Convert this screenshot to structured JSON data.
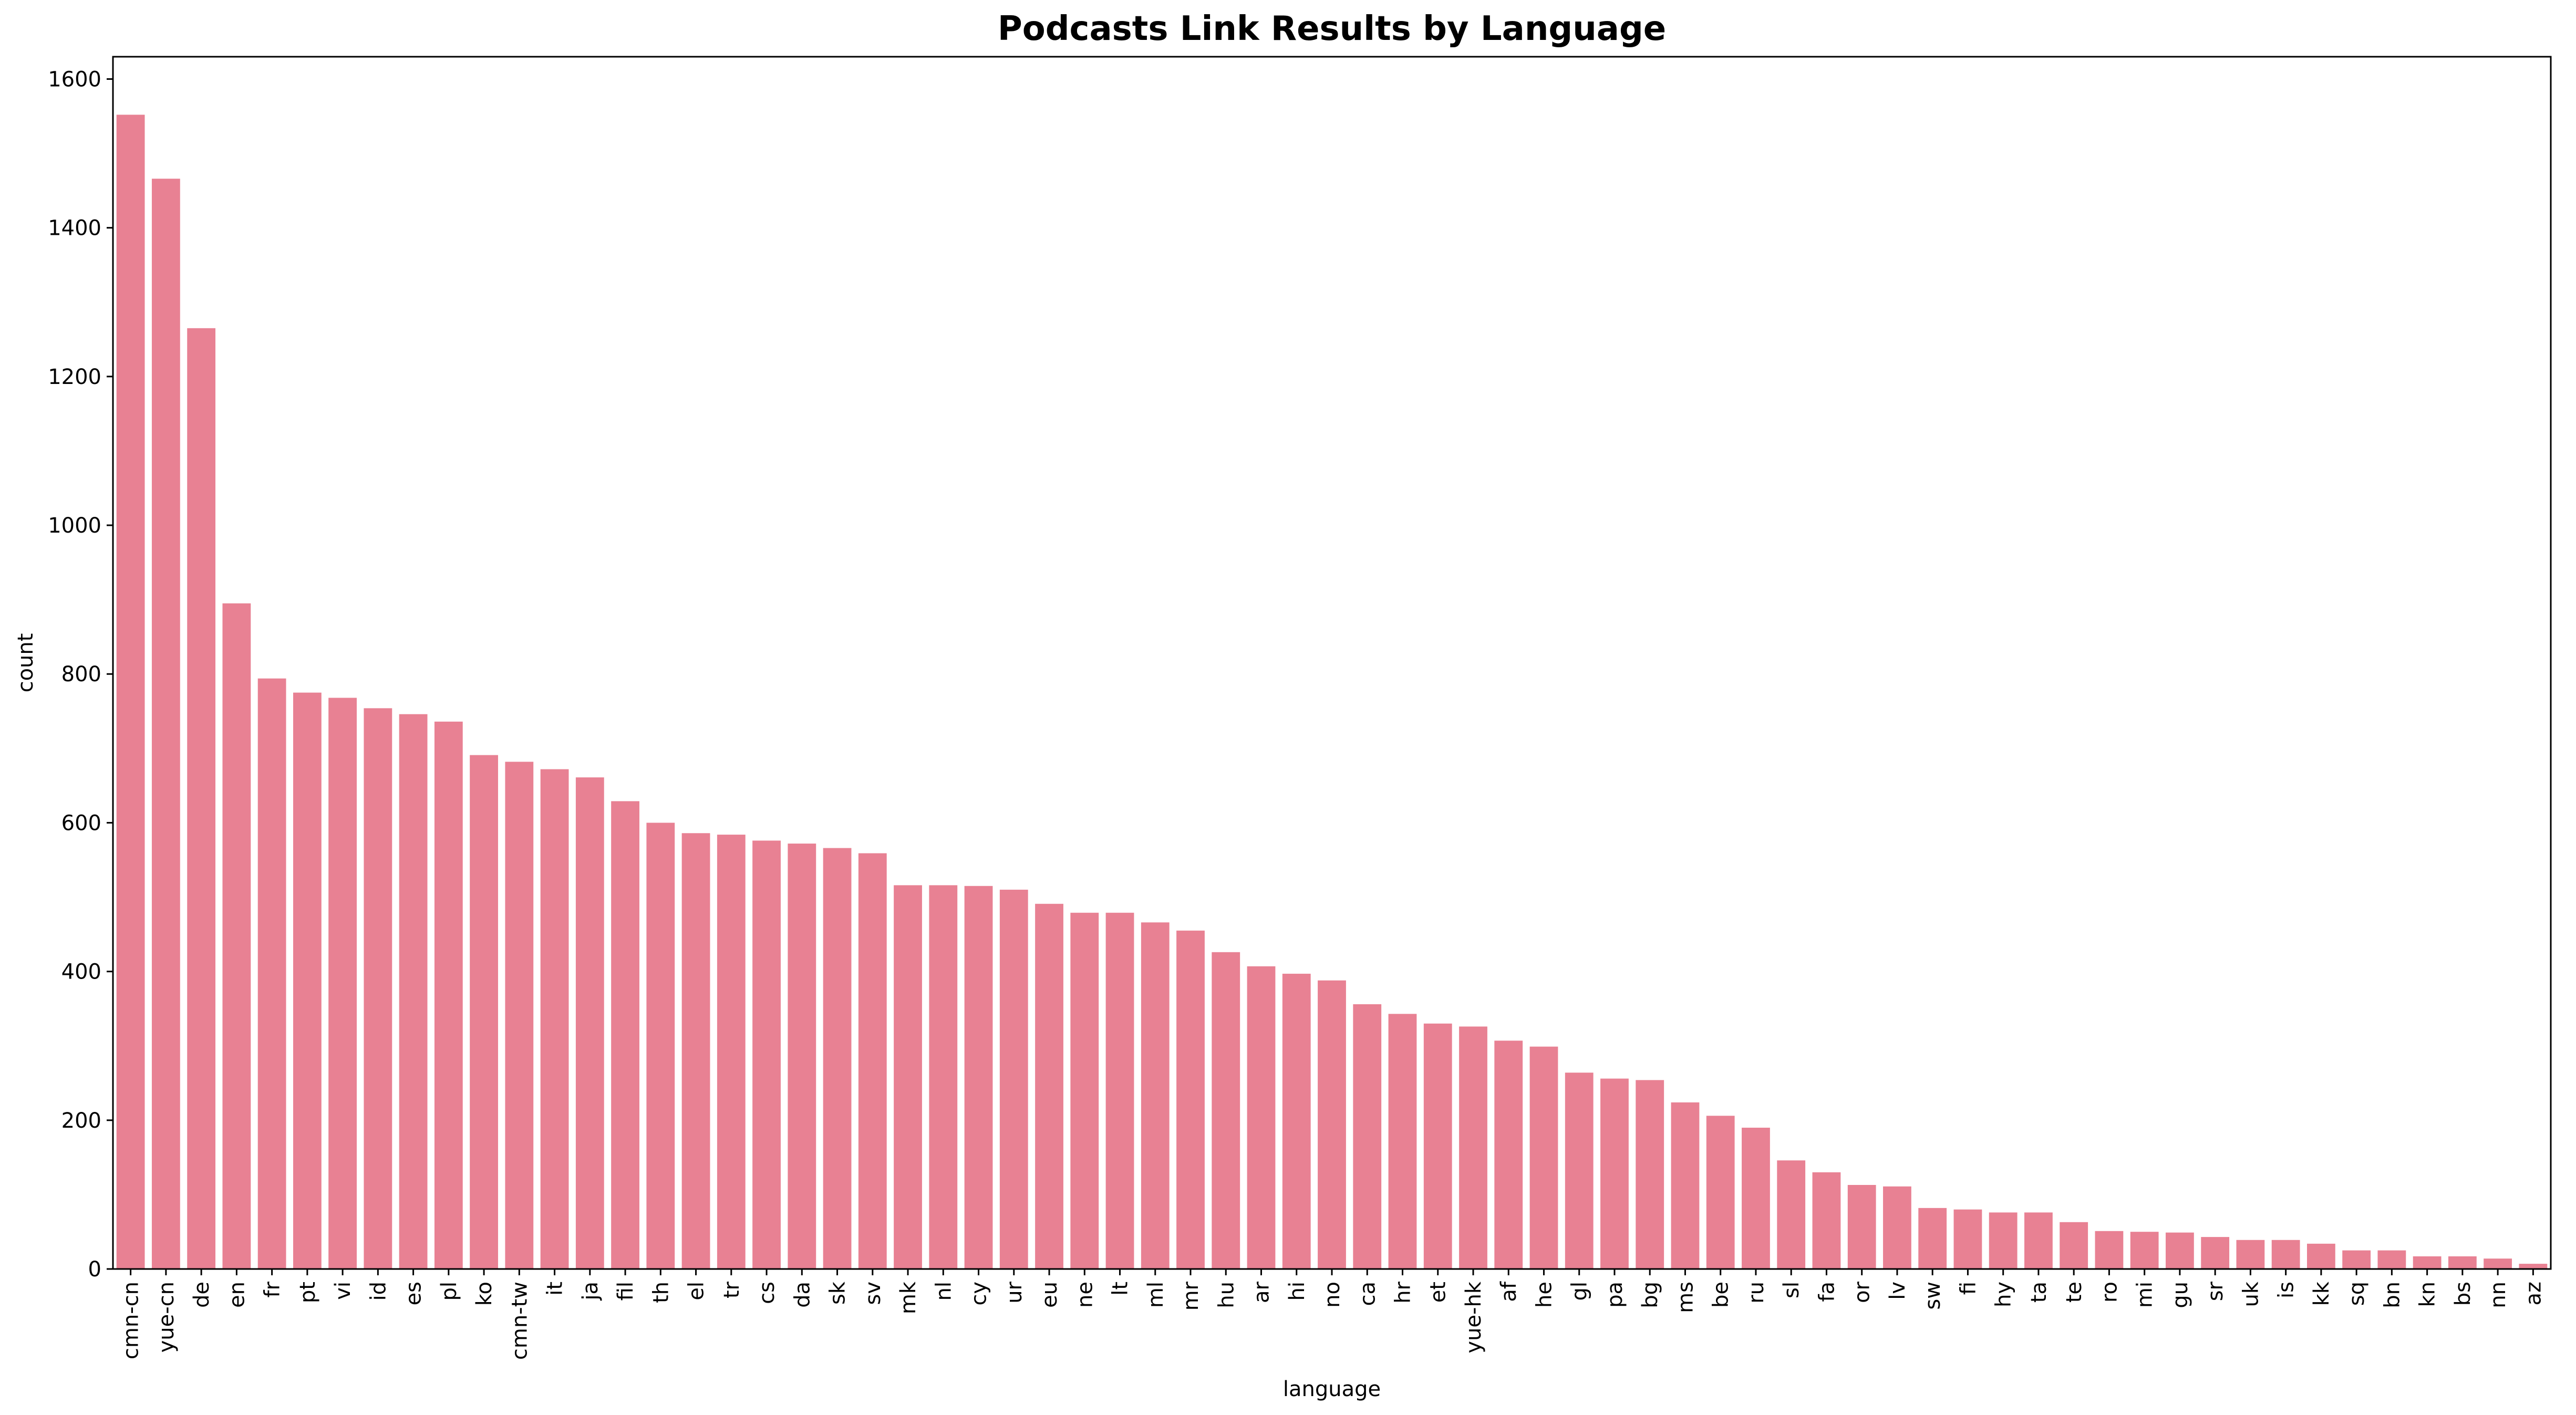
{
  "chart_data": {
    "type": "bar",
    "title": "Podcasts Link Results by Language",
    "xlabel": "language",
    "ylabel": "count",
    "ylim": [
      0,
      1630
    ],
    "yticks": [
      0,
      200,
      400,
      600,
      800,
      1000,
      1200,
      1400,
      1600
    ],
    "grid": false,
    "legend": "none",
    "bar_color": "#e88193",
    "categories": [
      "cmn-cn",
      "yue-cn",
      "de",
      "en",
      "fr",
      "pt",
      "vi",
      "id",
      "es",
      "pl",
      "ko",
      "cmn-tw",
      "it",
      "ja",
      "fil",
      "th",
      "el",
      "tr",
      "cs",
      "da",
      "sk",
      "sv",
      "mk",
      "nl",
      "cy",
      "ur",
      "eu",
      "ne",
      "lt",
      "ml",
      "mr",
      "hu",
      "ar",
      "hi",
      "no",
      "ca",
      "hr",
      "et",
      "yue-hk",
      "af",
      "he",
      "gl",
      "pa",
      "bg",
      "ms",
      "be",
      "ru",
      "sl",
      "fa",
      "or",
      "lv",
      "sw",
      "fi",
      "hy",
      "ta",
      "te",
      "ro",
      "mi",
      "gu",
      "sr",
      "uk",
      "is",
      "kk",
      "sq",
      "bn",
      "kn",
      "bs",
      "nn",
      "az"
    ],
    "values": [
      1552,
      1466,
      1265,
      895,
      794,
      775,
      768,
      754,
      746,
      736,
      691,
      682,
      672,
      661,
      629,
      600,
      586,
      584,
      576,
      572,
      566,
      559,
      516,
      516,
      515,
      510,
      491,
      479,
      479,
      466,
      455,
      426,
      407,
      397,
      388,
      356,
      343,
      330,
      326,
      307,
      299,
      264,
      256,
      254,
      224,
      206,
      190,
      146,
      130,
      113,
      111,
      82,
      80,
      76,
      76,
      63,
      51,
      50,
      49,
      43,
      39,
      39,
      34,
      25,
      25,
      17,
      17,
      14,
      7
    ]
  }
}
